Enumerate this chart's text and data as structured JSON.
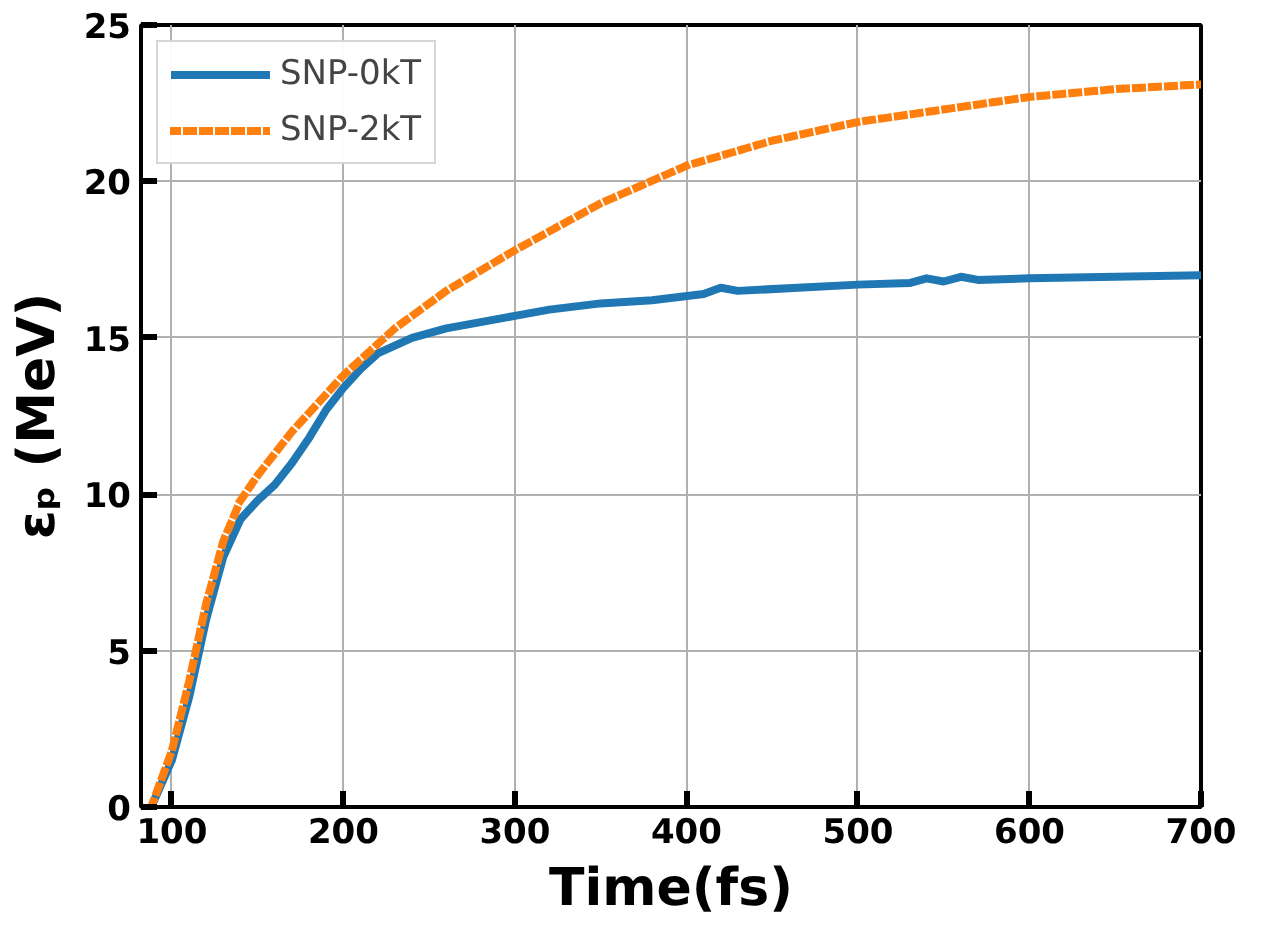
{
  "chart_data": {
    "type": "line",
    "xlabel": "Time(fs)",
    "ylabel": "εₚ (MeV)",
    "xlim": [
      82,
      700
    ],
    "ylim": [
      0,
      25
    ],
    "xticks": [
      100,
      200,
      300,
      400,
      500,
      600,
      700
    ],
    "yticks": [
      0,
      5,
      10,
      15,
      20,
      25
    ],
    "grid": true,
    "legend": "top left",
    "series": [
      {
        "name": "SNP-0kT",
        "color": "#1f77b4",
        "line_style": "solid",
        "x": [
          88,
          100,
          110,
          120,
          130,
          140,
          150,
          160,
          170,
          180,
          190,
          200,
          210,
          220,
          240,
          260,
          280,
          300,
          320,
          350,
          380,
          410,
          420,
          430,
          500,
          530,
          540,
          550,
          560,
          570,
          600,
          700
        ],
        "values": [
          0,
          1.5,
          3.5,
          6,
          8,
          9.2,
          9.8,
          10.3,
          11,
          11.8,
          12.7,
          13.4,
          14,
          14.5,
          15,
          15.3,
          15.5,
          15.7,
          15.9,
          16.1,
          16.2,
          16.4,
          16.6,
          16.5,
          16.7,
          16.75,
          16.9,
          16.8,
          16.95,
          16.85,
          16.9,
          17.0
        ]
      },
      {
        "name": "SNP-2kT",
        "color": "#ff7f0e",
        "line_style": "dotted",
        "x": [
          88,
          100,
          110,
          120,
          130,
          140,
          150,
          170,
          200,
          230,
          260,
          300,
          350,
          400,
          450,
          500,
          550,
          600,
          650,
          700
        ],
        "values": [
          0,
          1.8,
          4,
          6.5,
          8.5,
          9.8,
          10.6,
          12,
          13.8,
          15.3,
          16.5,
          17.8,
          19.3,
          20.5,
          21.3,
          21.9,
          22.3,
          22.7,
          22.95,
          23.1
        ]
      }
    ]
  }
}
